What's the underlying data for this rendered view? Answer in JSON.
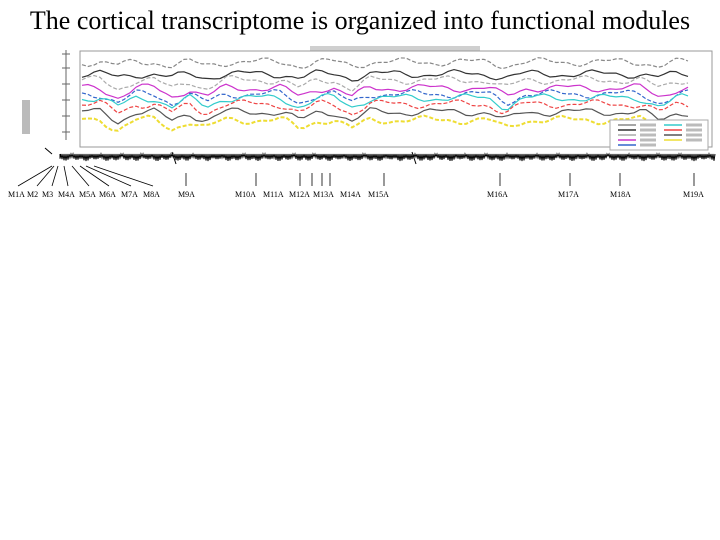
{
  "slide": {
    "title": "The cortical transcriptome is organized into functional modules"
  },
  "colors": {
    "series": [
      "#888888",
      "#333333",
      "#aaaaaa",
      "#cc33cc",
      "#3366cc",
      "#33cccc",
      "#ee4444",
      "#555555",
      "#eedd33"
    ],
    "dendrogram": "#000000"
  },
  "modules": [
    "M1A",
    "M2",
    "M3",
    "M4A",
    "M5A",
    "M6A",
    "M7A",
    "M8A",
    "M9A",
    "M10A",
    "M11A",
    "M12A",
    "M13A",
    "M14A",
    "M15A",
    "M16A",
    "M17A",
    "M18A",
    "M19A"
  ]
}
